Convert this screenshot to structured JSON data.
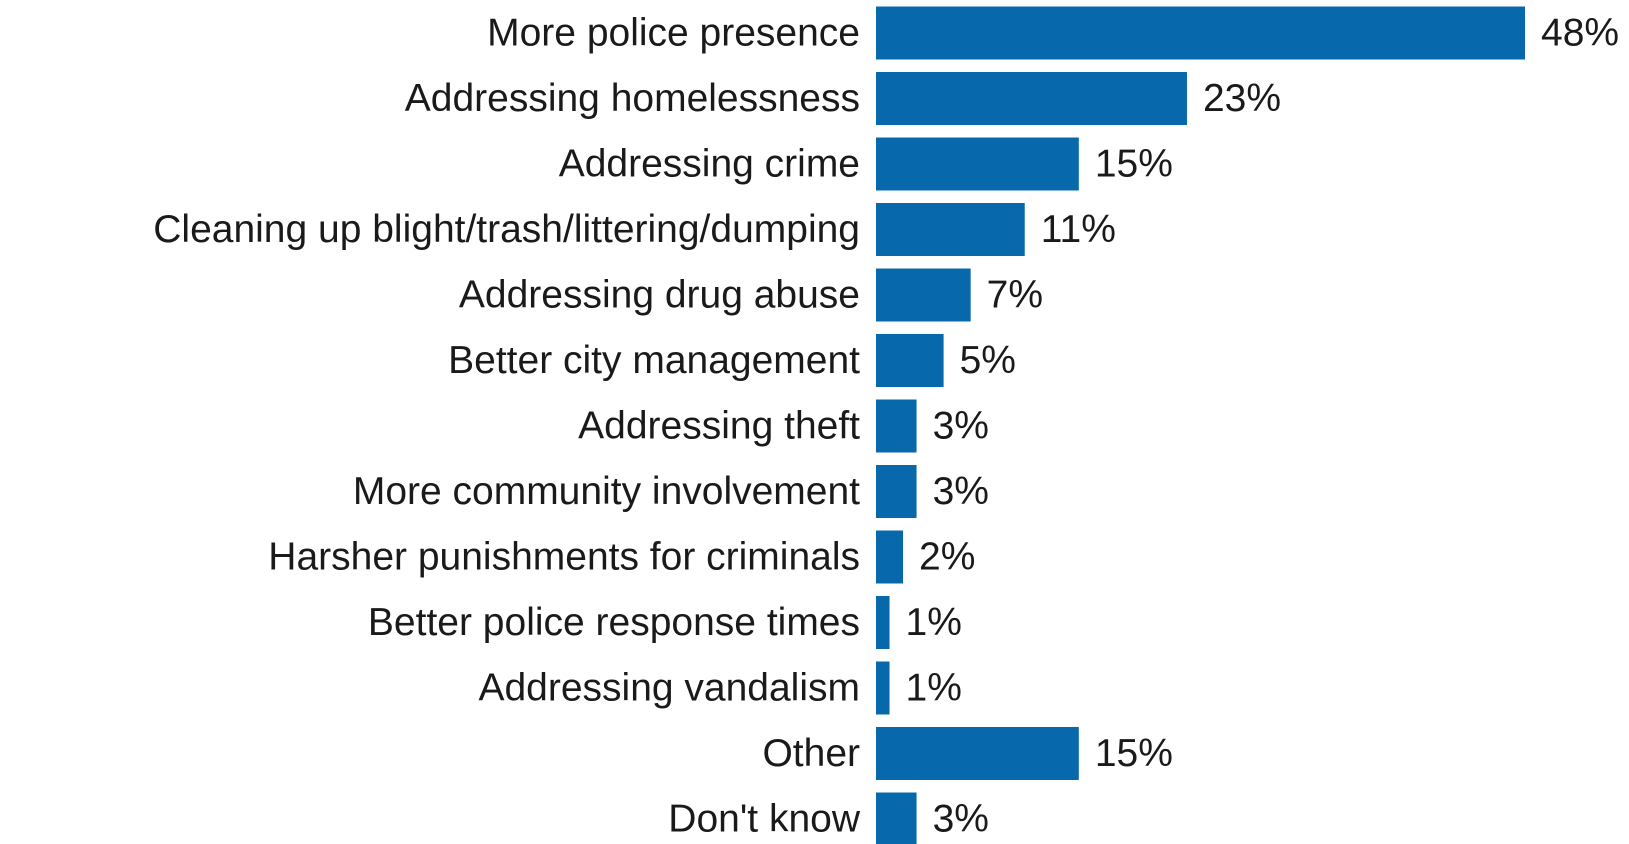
{
  "chart_data": {
    "type": "bar",
    "orientation": "horizontal",
    "categories": [
      "More police presence",
      "Addressing homelessness",
      "Addressing crime",
      "Cleaning up blight/trash/littering/dumping",
      "Addressing drug abuse",
      "Better city management",
      "Addressing theft",
      "More community involvement",
      "Harsher punishments for criminals",
      "Better police response times",
      "Addressing vandalism",
      "Other",
      "Don't know"
    ],
    "values": [
      48,
      23,
      15,
      11,
      7,
      5,
      3,
      3,
      2,
      1,
      1,
      15,
      3
    ],
    "value_labels": [
      "48%",
      "23%",
      "15%",
      "11%",
      "7%",
      "5%",
      "3%",
      "3%",
      "2%",
      "1%",
      "1%",
      "15%",
      "3%"
    ],
    "title": "",
    "xlabel": "",
    "ylabel": "",
    "xlim": [
      0,
      48
    ],
    "grid": false,
    "legend": "none",
    "bar_color": "#0868ac"
  }
}
